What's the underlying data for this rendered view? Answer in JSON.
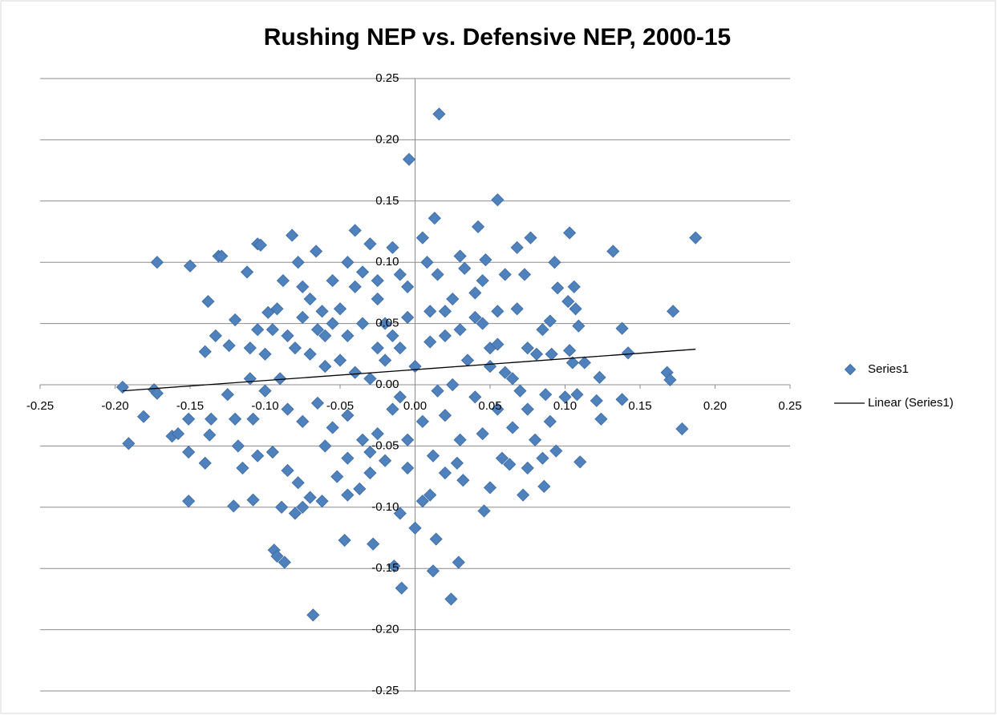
{
  "chart_data": {
    "type": "scatter",
    "title": "Rushing NEP vs. Defensive NEP, 2000-15",
    "xlim": [
      -0.25,
      0.25
    ],
    "xticks": [
      -0.25,
      {
        "value": -0.2,
        "label": "-0.20"
      },
      -0.15,
      {
        "value": -0.1,
        "label": "-0.10"
      },
      -0.05,
      {
        "value": 0,
        "label": "0.00"
      },
      0.05,
      {
        "value": 0.1,
        "label": "0.10"
      },
      0.15,
      {
        "value": 0.2,
        "label": "0.20"
      },
      0.25
    ],
    "ylim": [
      -0.25,
      0.25
    ],
    "yticks": [
      -0.25,
      {
        "value": -0.2,
        "label": "-0.20"
      },
      -0.15,
      {
        "value": -0.1,
        "label": "-0.10"
      },
      -0.05,
      {
        "value": 0,
        "label": "0.00"
      },
      0.05,
      {
        "value": 0.1,
        "label": "0.10"
      },
      0.15,
      {
        "value": 0.2,
        "label": "0.20"
      },
      0.25
    ],
    "grid": true,
    "legend": "right",
    "series": [
      {
        "name": "Series1",
        "color": "#4f81bd",
        "x": [
          0.016,
          -0.004,
          0.055,
          0.013,
          0.187,
          0.172,
          0.178,
          0.168,
          0.17,
          0.138,
          0.142,
          0.138,
          0.132,
          0.103,
          0.077,
          0.068,
          0.042,
          0.047,
          -0.04,
          -0.082,
          -0.105,
          -0.103,
          -0.131,
          -0.129,
          -0.172,
          -0.15,
          -0.112,
          -0.066,
          -0.138,
          -0.195,
          -0.174,
          -0.172,
          -0.181,
          -0.191,
          -0.162,
          -0.158,
          -0.151,
          -0.151,
          -0.151,
          -0.14,
          -0.137,
          -0.136,
          -0.121,
          -0.108,
          -0.094,
          -0.092,
          -0.087,
          -0.089,
          -0.068,
          -0.047,
          -0.028,
          -0.01,
          -0.009,
          -0.014,
          0.0,
          0.012,
          0.014,
          0.024,
          0.029,
          0.046,
          0.072,
          0.086,
          0.11,
          0.124,
          0.121,
          0.123,
          0.106,
          0.107,
          0.109,
          0.093,
          0.095,
          0.102,
          0.103,
          0.105,
          0.113,
          0.108,
          0.09,
          0.073,
          0.06,
          0.068,
          0.081,
          0.091,
          0.087,
          0.094,
          0.085,
          0.075,
          0.063,
          0.058,
          0.05,
          0.032,
          0.028,
          0.02,
          0.012,
          0.005,
          0.01,
          -0.005,
          -0.02,
          -0.03,
          -0.037,
          -0.045,
          -0.052,
          -0.062,
          -0.07,
          -0.075,
          -0.08,
          -0.078,
          -0.085,
          -0.095,
          -0.105,
          -0.115,
          -0.118,
          -0.12,
          -0.125,
          -0.108,
          -0.11,
          -0.12,
          -0.124,
          -0.133,
          -0.14,
          -0.11,
          -0.1,
          -0.098,
          -0.092,
          -0.088,
          -0.078,
          -0.075,
          -0.07,
          -0.062,
          -0.06,
          -0.055,
          -0.05,
          -0.045,
          -0.04,
          -0.035,
          -0.03,
          -0.025,
          -0.02,
          -0.015,
          -0.01,
          -0.005,
          0.005,
          0.008,
          0.01,
          0.015,
          0.02,
          0.025,
          0.03,
          0.033,
          0.04,
          0.045,
          0.05,
          0.055,
          0.06,
          0.035,
          0.025,
          0.015,
          0.0,
          -0.01,
          -0.02,
          -0.03,
          -0.04,
          -0.05,
          -0.06,
          -0.07,
          -0.08,
          -0.09,
          -0.1,
          -0.085,
          -0.075,
          -0.065,
          -0.055,
          -0.045,
          -0.035,
          -0.025,
          -0.015,
          -0.005,
          0.005,
          0.02,
          0.03,
          0.04,
          0.045,
          0.055,
          0.065,
          0.07,
          0.075,
          0.08,
          0.09,
          0.1,
          0.085,
          0.075,
          0.065,
          0.05,
          0.04,
          0.03,
          0.02,
          0.01,
          -0.005,
          -0.015,
          -0.025,
          -0.035,
          -0.045,
          -0.055,
          -0.065,
          -0.075,
          -0.085,
          -0.095,
          -0.105,
          -0.045,
          -0.06,
          -0.03,
          -0.01,
          0.045,
          0.055,
          -0.025
        ],
        "values": [
          0.221,
          0.184,
          0.151,
          0.136,
          0.12,
          0.06,
          -0.036,
          0.01,
          0.004,
          0.046,
          0.026,
          -0.012,
          0.109,
          0.124,
          0.12,
          0.112,
          0.129,
          0.102,
          0.126,
          0.122,
          0.115,
          0.114,
          0.105,
          0.105,
          0.1,
          0.097,
          0.092,
          0.109,
          0.068,
          -0.002,
          -0.004,
          -0.007,
          -0.026,
          -0.048,
          -0.042,
          -0.04,
          -0.028,
          -0.055,
          -0.095,
          -0.064,
          -0.041,
          -0.028,
          -0.099,
          -0.094,
          -0.135,
          -0.14,
          -0.145,
          -0.1,
          -0.188,
          -0.127,
          -0.13,
          -0.105,
          -0.166,
          -0.148,
          -0.117,
          -0.152,
          -0.126,
          -0.175,
          -0.145,
          -0.103,
          -0.09,
          -0.083,
          -0.063,
          -0.028,
          -0.013,
          0.006,
          0.08,
          0.062,
          0.048,
          0.1,
          0.079,
          0.068,
          0.028,
          0.018,
          0.018,
          -0.008,
          0.052,
          0.09,
          0.09,
          0.062,
          0.025,
          0.025,
          -0.008,
          -0.054,
          -0.06,
          -0.068,
          -0.065,
          -0.06,
          -0.084,
          -0.078,
          -0.064,
          -0.072,
          -0.058,
          -0.095,
          -0.09,
          -0.068,
          -0.062,
          -0.072,
          -0.085,
          -0.09,
          -0.075,
          -0.095,
          -0.092,
          -0.1,
          -0.105,
          -0.08,
          -0.07,
          -0.055,
          -0.058,
          -0.068,
          -0.05,
          -0.028,
          -0.008,
          -0.028,
          0.005,
          0.053,
          0.032,
          0.04,
          0.027,
          0.03,
          0.025,
          0.059,
          0.062,
          0.085,
          0.1,
          0.08,
          0.07,
          0.06,
          0.04,
          0.085,
          0.062,
          0.1,
          0.08,
          0.092,
          0.115,
          0.07,
          0.05,
          0.112,
          0.09,
          0.08,
          0.12,
          0.1,
          0.06,
          0.09,
          0.04,
          0.07,
          0.105,
          0.095,
          0.075,
          0.05,
          0.03,
          0.033,
          0.01,
          0.02,
          0.0,
          -0.005,
          0.015,
          0.03,
          0.02,
          0.005,
          0.01,
          0.02,
          0.015,
          0.025,
          0.03,
          0.005,
          -0.005,
          -0.02,
          -0.03,
          -0.015,
          -0.035,
          -0.025,
          -0.045,
          -0.04,
          -0.02,
          -0.045,
          -0.03,
          -0.025,
          -0.045,
          -0.01,
          -0.04,
          -0.02,
          -0.035,
          -0.005,
          -0.02,
          -0.045,
          -0.03,
          -0.01,
          0.045,
          0.03,
          0.005,
          0.015,
          0.055,
          0.045,
          0.06,
          0.035,
          0.055,
          0.04,
          0.03,
          0.05,
          0.04,
          0.05,
          0.045,
          0.055,
          0.04,
          0.045,
          0.045,
          -0.06,
          -0.05,
          -0.055,
          -0.01,
          0.085,
          0.06,
          0.085
        ]
      }
    ],
    "trendline": {
      "name": "Linear (Series1)",
      "color": "#000000",
      "x": [
        -0.195,
        0.187
      ],
      "values": [
        -0.005,
        0.029
      ]
    }
  }
}
